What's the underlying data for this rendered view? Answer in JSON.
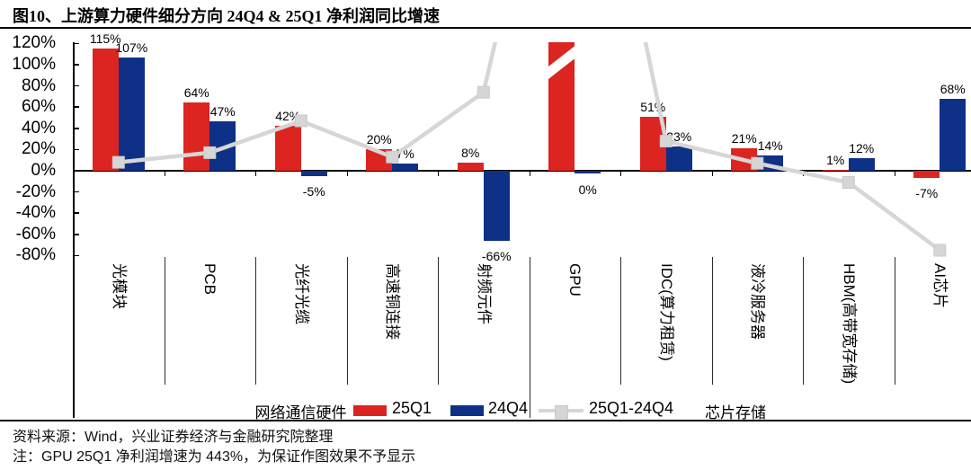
{
  "title": "图10、上游算力硬件细分方向 24Q4 & 25Q1 净利润同比增速",
  "legend": {
    "bar1": "25Q1",
    "bar2": "24Q4",
    "line": "25Q1-24Q4"
  },
  "groups": {
    "left": "网络通信硬件",
    "right": "芯片存储"
  },
  "footer": {
    "source": "资料来源：Wind，兴业证券经济与金融研究院整理",
    "note": "注：GPU 25Q1 净利润增速为 443%，为保证作图效果不予显示"
  },
  "chart_data": {
    "type": "bar",
    "subtype": "grouped bars with difference line overlay",
    "title": "上游算力硬件细分方向 24Q4 & 25Q1 净利润同比增速",
    "categories": [
      "光模块",
      "PCB",
      "光纤光缆",
      "高速铜连接",
      "射频元件",
      "GPU",
      "IDC(算力租赁)",
      "液冷服务器",
      "HBM(高带宽存储)",
      "AI芯片"
    ],
    "series": [
      {
        "name": "25Q1",
        "type": "bar",
        "color": "#dc2420",
        "values": [
          115,
          64,
          42,
          20,
          8,
          443,
          51,
          21,
          1,
          -7
        ],
        "labels": [
          "115%",
          "64%",
          "42%",
          "20%",
          "8%",
          "",
          "51%",
          "21%",
          "1%",
          "-7%"
        ]
      },
      {
        "name": "24Q4",
        "type": "bar",
        "color": "#0f3087",
        "values": [
          107,
          47,
          -5,
          7,
          -66,
          0,
          23,
          14,
          12,
          68
        ],
        "labels": [
          "107%",
          "47%",
          "-5%",
          "7%",
          "-66%",
          "0%",
          "23%",
          "14%",
          "12%",
          "68%"
        ]
      },
      {
        "name": "25Q1-24Q4",
        "type": "line",
        "color": "#d6d6d6",
        "values": [
          8,
          17,
          47,
          13,
          74,
          443,
          28,
          7,
          -11,
          -75
        ]
      }
    ],
    "ylim": [
      -80,
      120
    ],
    "y_ticks": [
      "120%",
      "100%",
      "80%",
      "60%",
      "40%",
      "20%",
      "0%",
      "-20%",
      "-40%",
      "-60%",
      "-80%"
    ],
    "grid": "off",
    "legend_position": "bottom",
    "category_groups": [
      {
        "label": "网络通信硬件",
        "from": 0,
        "to": 4
      },
      {
        "label": "芯片存储",
        "from": 5,
        "to": 9
      }
    ],
    "annotations": {
      "gpu_clipped": "GPU 25Q1 柱与差值点超出纵轴上限(443%)，截断显示"
    }
  }
}
